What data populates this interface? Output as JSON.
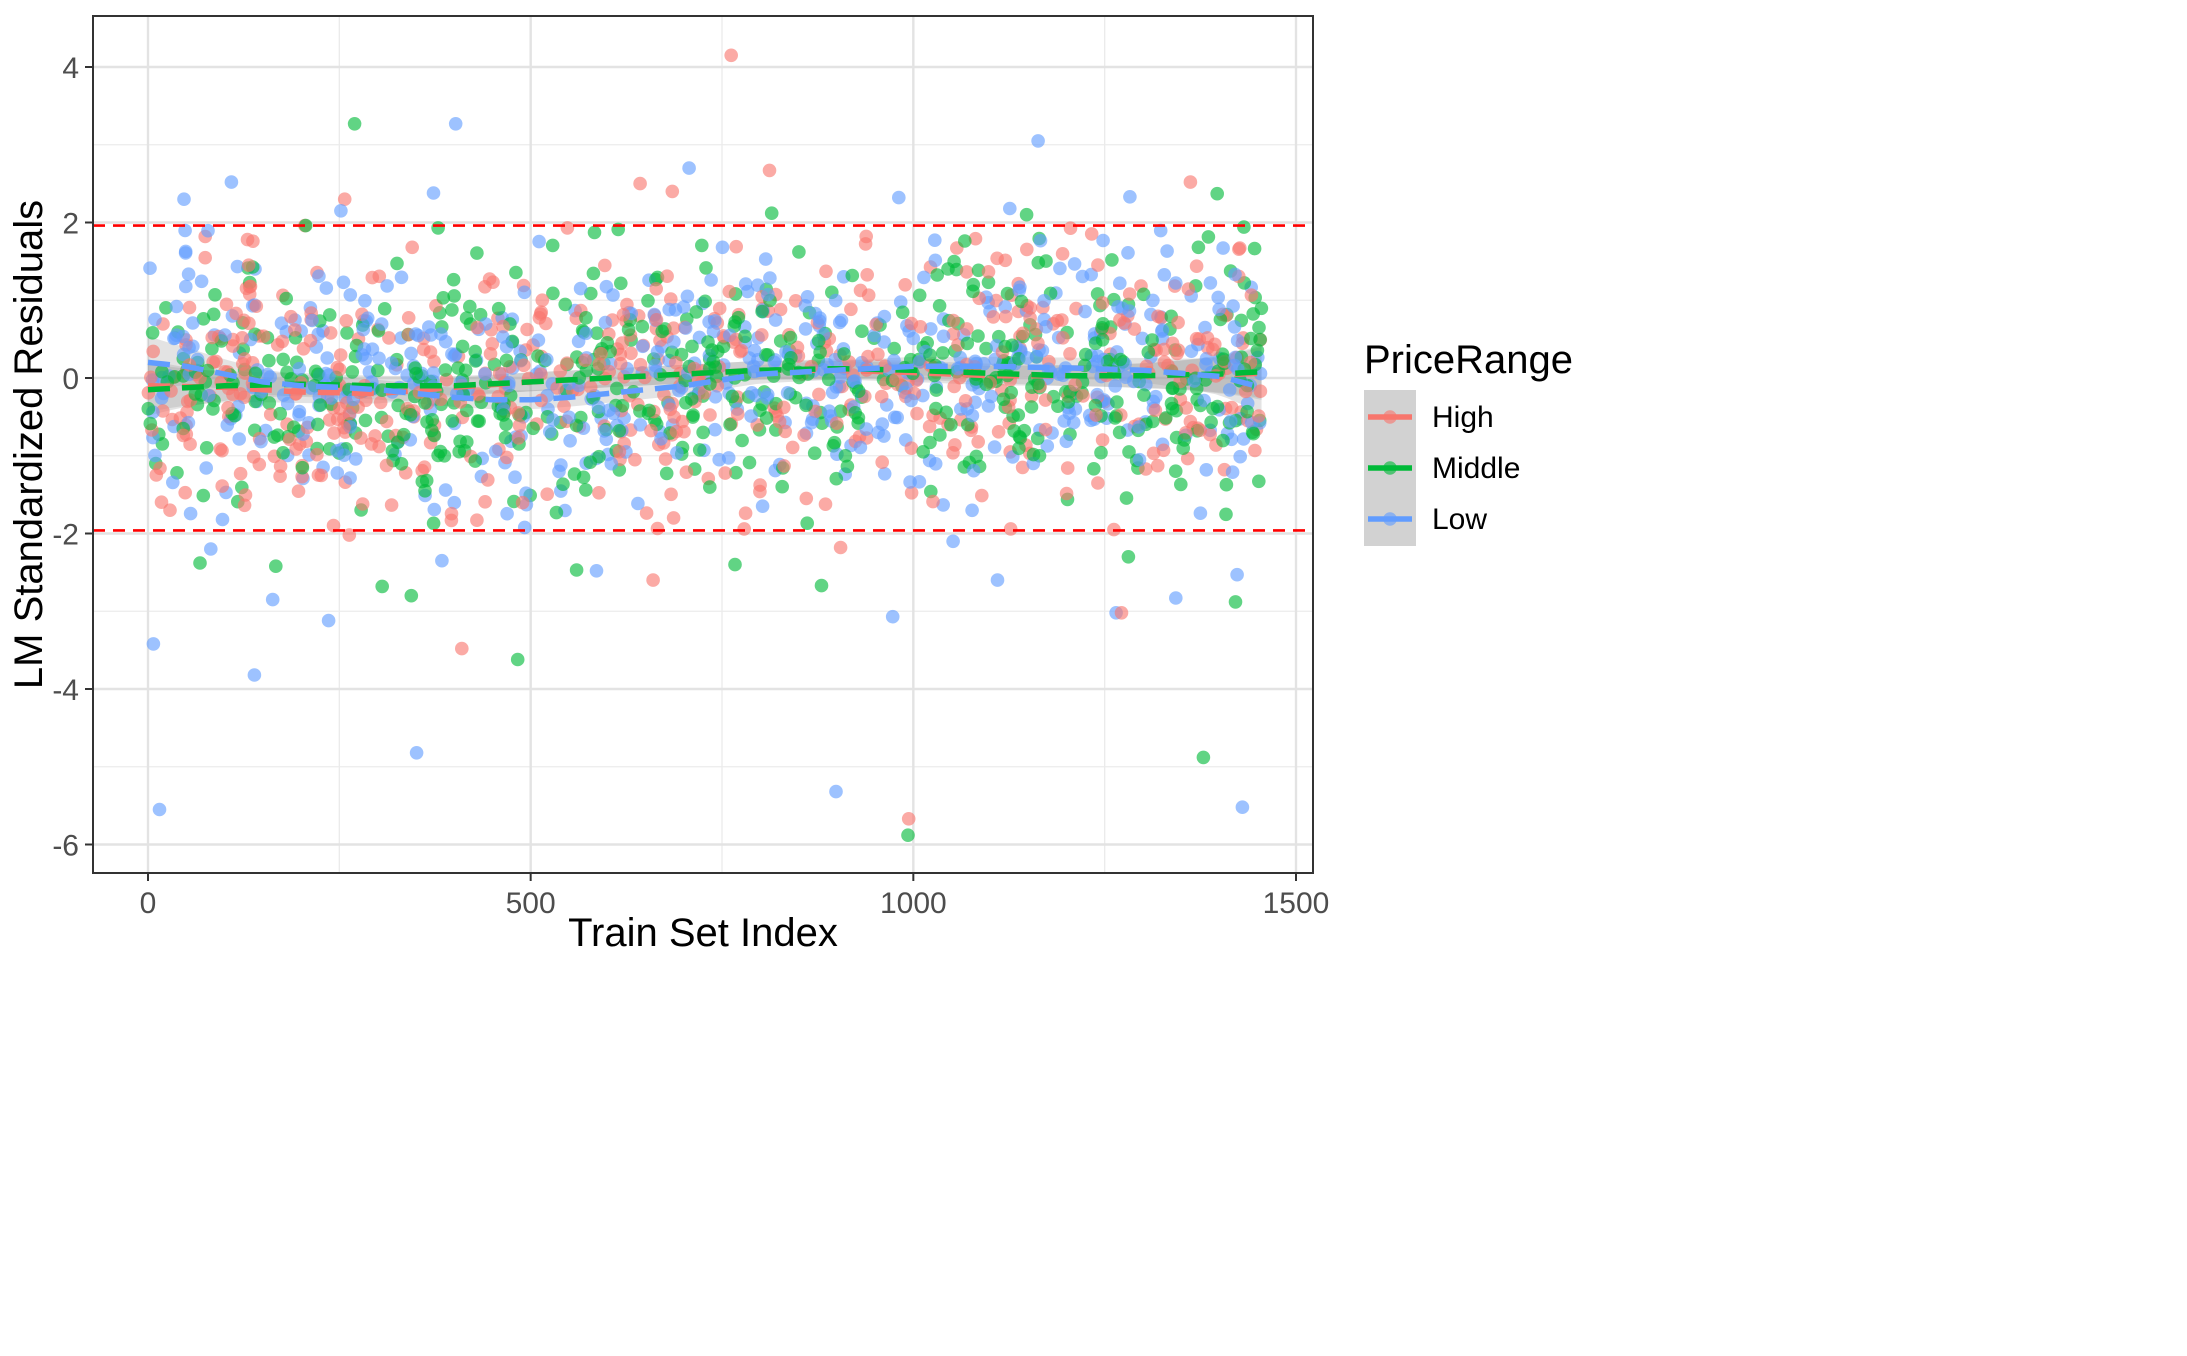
{
  "chart_data": {
    "type": "scatter",
    "title": "",
    "xlabel": "Train Set Index",
    "ylabel": "LM Standardized Residuals",
    "xlim": [
      -60,
      1520
    ],
    "ylim": [
      -6.4,
      4.65
    ],
    "x_ticks": [
      0,
      500,
      1000,
      1500
    ],
    "y_ticks": [
      -6,
      -4,
      -2,
      0,
      2,
      4
    ],
    "x_tick_labels": [
      "0",
      "500",
      "1000",
      "1500"
    ],
    "y_tick_labels": [
      "-6",
      "-4",
      "-2",
      "0",
      "2",
      "4"
    ],
    "grid": true,
    "legend": {
      "title": "PriceRange",
      "position": "right",
      "entries": [
        "High",
        "Middle",
        "Low"
      ]
    },
    "reference_lines": [
      {
        "y": 1.96,
        "color": "#ff0000",
        "style": "dashed"
      },
      {
        "y": -1.96,
        "color": "#ff0000",
        "style": "dashed"
      }
    ],
    "series": [
      {
        "name": "High",
        "color": "#f8766d",
        "n_points": 560,
        "highlight_points": [
          [
            762,
            4.15
          ],
          [
            812,
            2.67
          ],
          [
            1362,
            2.52
          ],
          [
            643,
            2.5
          ],
          [
            685,
            2.4
          ],
          [
            257,
            2.3
          ],
          [
            548,
            1.93
          ],
          [
            205,
            1.96
          ],
          [
            130,
            1.78
          ],
          [
            137,
            1.76
          ],
          [
            994,
            -5.67
          ],
          [
            410,
            -3.48
          ],
          [
            1272,
            -3.02
          ],
          [
            905,
            -2.18
          ],
          [
            263,
            -2.02
          ],
          [
            660,
            -2.6
          ],
          [
            1262,
            -1.95
          ]
        ],
        "trend": [
          [
            0,
            -0.1
          ],
          [
            100,
            -0.12
          ],
          [
            200,
            -0.18
          ],
          [
            300,
            -0.2
          ],
          [
            400,
            -0.12
          ],
          [
            500,
            -0.05
          ],
          [
            600,
            0.0
          ],
          [
            700,
            0.05
          ],
          [
            800,
            0.1
          ],
          [
            900,
            0.1
          ],
          [
            1000,
            0.07
          ],
          [
            1100,
            0.03
          ],
          [
            1200,
            0.03
          ],
          [
            1300,
            0.03
          ],
          [
            1400,
            0.04
          ],
          [
            1455,
            0.06
          ]
        ]
      },
      {
        "name": "Middle",
        "color": "#00ba38",
        "n_points": 560,
        "highlight_points": [
          [
            270,
            3.27
          ],
          [
            815,
            2.12
          ],
          [
            1397,
            2.37
          ],
          [
            1148,
            2.1
          ],
          [
            379,
            1.93
          ],
          [
            206,
            1.96
          ],
          [
            1379,
            -4.88
          ],
          [
            993,
            -5.88
          ],
          [
            483,
            -3.62
          ],
          [
            1281,
            -2.3
          ],
          [
            880,
            -2.67
          ],
          [
            306,
            -2.68
          ],
          [
            344,
            -2.8
          ],
          [
            767,
            -2.4
          ],
          [
            560,
            -2.47
          ],
          [
            1421,
            -2.88
          ],
          [
            68,
            -2.38
          ],
          [
            167,
            -2.42
          ]
        ],
        "trend": [
          [
            0,
            -0.15
          ],
          [
            100,
            -0.1
          ],
          [
            200,
            -0.08
          ],
          [
            300,
            -0.1
          ],
          [
            400,
            -0.1
          ],
          [
            500,
            -0.05
          ],
          [
            600,
            0.0
          ],
          [
            700,
            0.05
          ],
          [
            800,
            0.1
          ],
          [
            900,
            0.12
          ],
          [
            1000,
            0.1
          ],
          [
            1100,
            0.06
          ],
          [
            1200,
            0.03
          ],
          [
            1300,
            0.03
          ],
          [
            1400,
            0.05
          ],
          [
            1455,
            0.08
          ]
        ]
      },
      {
        "name": "Low",
        "color": "#619cff",
        "n_points": 560,
        "highlight_points": [
          [
            402,
            3.27
          ],
          [
            1163,
            3.05
          ],
          [
            707,
            2.7
          ],
          [
            109,
            2.52
          ],
          [
            981,
            2.32
          ],
          [
            1283,
            2.33
          ],
          [
            47,
            2.3
          ],
          [
            373,
            2.38
          ],
          [
            1126,
            2.18
          ],
          [
            252,
            2.15
          ],
          [
            15,
            -5.55
          ],
          [
            899,
            -5.32
          ],
          [
            1430,
            -5.52
          ],
          [
            351,
            -4.82
          ],
          [
            139,
            -3.82
          ],
          [
            7,
            -3.42
          ],
          [
            236,
            -3.12
          ],
          [
            973,
            -3.07
          ],
          [
            1265,
            -3.02
          ],
          [
            1343,
            -2.83
          ],
          [
            163,
            -2.85
          ],
          [
            1110,
            -2.6
          ],
          [
            586,
            -2.48
          ],
          [
            1423,
            -2.53
          ],
          [
            82,
            -2.2
          ],
          [
            384,
            -2.35
          ],
          [
            1052,
            -2.1
          ]
        ],
        "trend": [
          [
            0,
            0.2
          ],
          [
            50,
            0.15
          ],
          [
            100,
            0.05
          ],
          [
            150,
            -0.05
          ],
          [
            200,
            -0.1
          ],
          [
            250,
            -0.12
          ],
          [
            300,
            -0.15
          ],
          [
            350,
            -0.2
          ],
          [
            400,
            -0.25
          ],
          [
            450,
            -0.28
          ],
          [
            500,
            -0.28
          ],
          [
            550,
            -0.25
          ],
          [
            600,
            -0.2
          ],
          [
            700,
            -0.1
          ],
          [
            800,
            0.05
          ],
          [
            900,
            0.1
          ],
          [
            1000,
            0.15
          ],
          [
            1100,
            0.15
          ],
          [
            1200,
            0.13
          ],
          [
            1300,
            0.1
          ],
          [
            1400,
            0.02
          ],
          [
            1455,
            -0.12
          ]
        ]
      }
    ]
  }
}
